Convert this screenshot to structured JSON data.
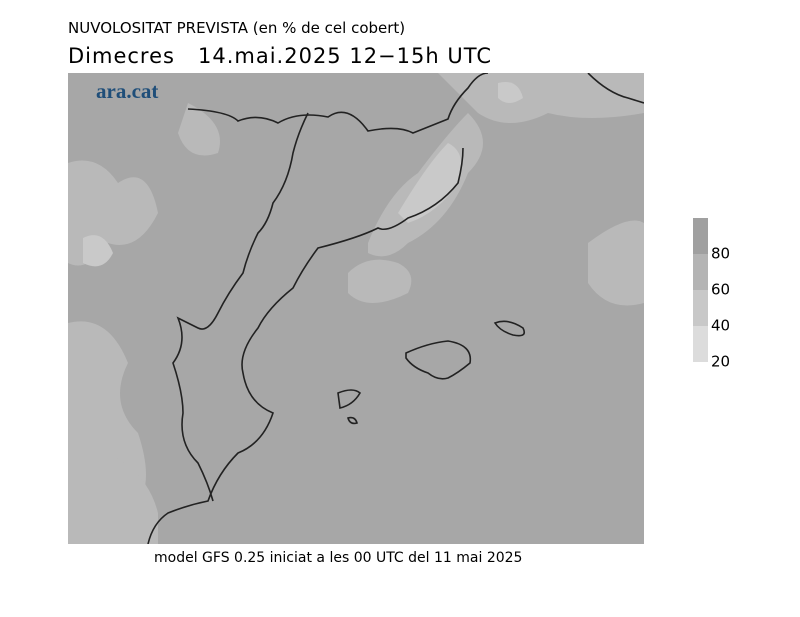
{
  "header": {
    "title": "NUVOLOSITAT PREVISTA (en % de cel cobert)",
    "subtitle": "Dimecres   14.mai.2025 12−15h UTC"
  },
  "logo": "ara.cat",
  "legend": {
    "ticks": [
      20,
      40,
      60,
      80
    ],
    "colors": [
      "#dcdcdc",
      "#c8c8c8",
      "#b4b4b4",
      "#a0a0a0"
    ]
  },
  "footer": "model GFS 0.25 iniciat a les 00 UTC del 11 mai 2025"
}
